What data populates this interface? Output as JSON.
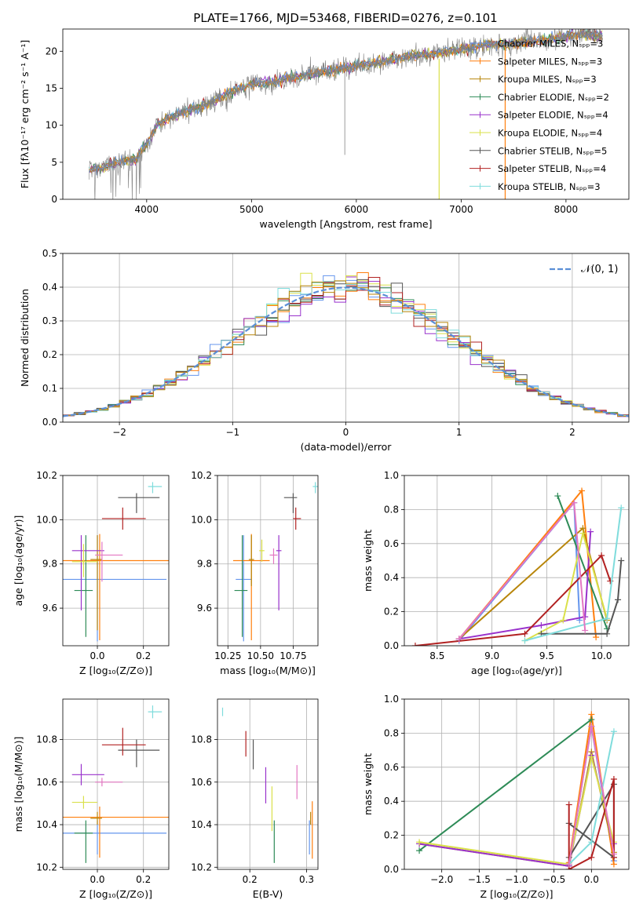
{
  "page_title": "PLATE=1766, MJD=53468, FIBERID=0276, z=0.101",
  "colors": {
    "chabrier_miles": "#6495ED",
    "salpeter_miles": "#FF7F0E",
    "kroupa_miles": "#B8860B",
    "chabrier_elodie": "#2E8B57",
    "salpeter_elodie": "#9932CC",
    "kroupa_elodie": "#DAE04A",
    "chabrier_stelib": "#555555",
    "salpeter_stelib": "#B22222",
    "kroupa_stelib": "#7FDCDC",
    "pink": "#E377C2",
    "normal": "#5B8FD6"
  },
  "chart_data": [
    {
      "id": "spectrum",
      "type": "line",
      "xlabel": "wavelength [Angstrom, rest frame]",
      "ylabel": "Flux [fλ10⁻¹⁷ erg cm⁻² s⁻¹ A⁻¹]",
      "xlim": [
        3200,
        8600
      ],
      "ylim": [
        0,
        23
      ],
      "xticks": [
        "4000",
        "5000",
        "6000",
        "7000",
        "8000"
      ],
      "yticks": [
        "0",
        "5",
        "10",
        "15",
        "20"
      ],
      "legend": [
        "Chabrier MILES, Nₛₚₚ=3",
        "Salpeter MILES, Nₛₚₚ=3",
        "Kroupa MILES, Nₛₚₚ=3",
        "Chabrier ELODIE, Nₛₚₚ=2",
        "Salpeter ELODIE, Nₛₚₚ=4",
        "Kroupa ELODIE, Nₛₚₚ=4",
        "Chabrier STELIB, Nₛₚₚ=5",
        "Salpeter STELIB, Nₛₚₚ=4",
        "Kroupa STELIB, Nₛₚₚ=3"
      ],
      "legend_position": "right",
      "spectrum_x": [
        3450,
        3600,
        3700,
        3800,
        3900,
        4000,
        4100,
        4200,
        4400,
        4600,
        4800,
        5000,
        5200,
        5400,
        5600,
        5800,
        6000,
        6200,
        6400,
        6600,
        6800,
        7000,
        7200,
        7400,
        7600,
        7800,
        8000,
        8200,
        8350
      ],
      "spectrum_y": [
        4,
        4.3,
        5,
        5.2,
        5.5,
        7.5,
        10,
        11,
        12,
        13,
        14.5,
        15.5,
        15.8,
        16.5,
        17,
        17.5,
        18,
        18.5,
        19,
        19.5,
        19.8,
        20.2,
        20.8,
        21,
        21.2,
        21.5,
        22,
        22.3,
        22
      ],
      "grid": false
    },
    {
      "id": "residuals",
      "type": "histogram",
      "xlabel": "(data-model)/error",
      "ylabel": "Normed distribution",
      "xlim": [
        -2.5,
        2.5
      ],
      "ylim": [
        0,
        0.5
      ],
      "xticks": [
        "−2",
        "−1",
        "0",
        "1",
        "2"
      ],
      "yticks": [
        "0.0",
        "0.1",
        "0.2",
        "0.3",
        "0.4",
        "0.5"
      ],
      "legend": [
        "𝒩(0, 1)"
      ],
      "legend_position": "top-right",
      "bin_width": 0.1,
      "grid": true
    },
    {
      "id": "age_vs_Z",
      "type": "errorbar",
      "xlabel": "Z [log₁₀(Z/Z⊙)]",
      "ylabel": "age  [log₁₀(age/yr)]",
      "xlim": [
        -0.15,
        0.31
      ],
      "ylim": [
        9.43,
        10.2
      ],
      "xticks": [
        "0.0",
        "0.2"
      ],
      "yticks": [
        "9.6",
        "9.8",
        "10.0",
        "10.2"
      ],
      "grid": true,
      "points": [
        {
          "color": "chabrier_miles",
          "x": 0.0,
          "xerr": [
            0.3,
            0.3
          ],
          "y": 9.73,
          "yerr": [
            0.28,
            0.2
          ]
        },
        {
          "color": "salpeter_miles",
          "x": 0.01,
          "xerr": [
            0.3,
            0.3
          ],
          "y": 9.815,
          "yerr": [
            0.36,
            0.12
          ]
        },
        {
          "color": "kroupa_miles",
          "x": 0.0,
          "xerr": [
            0.03,
            0.02
          ],
          "y": 9.82,
          "yerr": [
            0.32,
            0.11
          ]
        },
        {
          "color": "chabrier_elodie",
          "x": -0.05,
          "xerr": [
            0.05,
            0.03
          ],
          "y": 9.68,
          "yerr": [
            0.21,
            0.25
          ]
        },
        {
          "color": "salpeter_elodie",
          "x": -0.07,
          "xerr": [
            0.04,
            0.1
          ],
          "y": 9.86,
          "yerr": [
            0.27,
            0.07
          ]
        },
        {
          "color": "kroupa_elodie",
          "x": -0.06,
          "xerr": [
            0.05,
            0.06
          ],
          "y": 9.81,
          "yerr": [
            0.07,
            0.08
          ]
        },
        {
          "color": "chabrier_stelib",
          "x": 0.17,
          "xerr": [
            0.08,
            0.1
          ],
          "y": 10.1,
          "yerr": [
            0.07,
            0.02
          ]
        },
        {
          "color": "salpeter_stelib",
          "x": 0.11,
          "xerr": [
            0.09,
            0.1
          ],
          "y": 10.005,
          "yerr": [
            0.05,
            0.05
          ]
        },
        {
          "color": "kroupa_stelib",
          "x": 0.24,
          "xerr": [
            0.02,
            0.04
          ],
          "y": 10.15,
          "yerr": [
            0.03,
            0.02
          ]
        },
        {
          "color": "pink",
          "x": 0.02,
          "xerr": [
            0.03,
            0.09
          ],
          "y": 9.84,
          "yerr": [
            0.12,
            0.06
          ]
        }
      ]
    },
    {
      "id": "age_vs_mass",
      "type": "errorbar",
      "xlabel": "mass [log₁₀(M/M⊙)]",
      "ylabel": "",
      "xlim": [
        10.17,
        10.94
      ],
      "ylim": [
        9.43,
        10.2
      ],
      "xticks": [
        "10.25",
        "10.50",
        "10.75"
      ],
      "yticks": [
        "9.6",
        "9.8",
        "10.0",
        "10.2"
      ],
      "grid": true,
      "points": [
        {
          "color": "chabrier_miles",
          "x": 10.37,
          "xerr": [
            0.06,
            0.06
          ],
          "y": 9.73,
          "yerr": [
            0.28,
            0.2
          ]
        },
        {
          "color": "salpeter_miles",
          "x": 10.43,
          "xerr": [
            0.14,
            0.14
          ],
          "y": 9.815,
          "yerr": [
            0.36,
            0.12
          ]
        },
        {
          "color": "kroupa_miles",
          "x": 10.43,
          "xerr": [
            0.02,
            0.02
          ],
          "y": 9.82,
          "yerr": [
            0.12,
            0.11
          ]
        },
        {
          "color": "chabrier_elodie",
          "x": 10.36,
          "xerr": [
            0.06,
            0.04
          ],
          "y": 9.68,
          "yerr": [
            0.21,
            0.25
          ]
        },
        {
          "color": "salpeter_elodie",
          "x": 10.64,
          "xerr": [
            0.02,
            0.02
          ],
          "y": 9.86,
          "yerr": [
            0.27,
            0.07
          ]
        },
        {
          "color": "kroupa_elodie",
          "x": 10.51,
          "xerr": [
            0.02,
            0.02
          ],
          "y": 9.86,
          "yerr": [
            0.05,
            0.05
          ]
        },
        {
          "color": "chabrier_stelib",
          "x": 10.75,
          "xerr": [
            0.07,
            0.03
          ],
          "y": 10.1,
          "yerr": [
            0.07,
            0.02
          ]
        },
        {
          "color": "salpeter_stelib",
          "x": 10.77,
          "xerr": [
            0.02,
            0.04
          ],
          "y": 10.005,
          "yerr": [
            0.05,
            0.05
          ]
        },
        {
          "color": "kroupa_stelib",
          "x": 10.92,
          "xerr": [
            0.02,
            0.02
          ],
          "y": 10.15,
          "yerr": [
            0.03,
            0.02
          ]
        },
        {
          "color": "pink",
          "x": 10.6,
          "xerr": [
            0.03,
            0.03
          ],
          "y": 9.84,
          "yerr": [
            0.04,
            0.03
          ]
        }
      ]
    },
    {
      "id": "mass_vs_Z",
      "type": "errorbar",
      "xlabel": "Z [log₁₀(Z/Z⊙)]",
      "ylabel": "mass [log₁₀(M/M⊙)]",
      "xlim": [
        -0.15,
        0.31
      ],
      "ylim": [
        10.19,
        10.99
      ],
      "xticks": [
        "0.0",
        "0.2"
      ],
      "yticks": [
        "10.2",
        "10.4",
        "10.6",
        "10.8"
      ],
      "grid": true,
      "points": [
        {
          "color": "chabrier_miles",
          "x": 0.0,
          "xerr": [
            0.3,
            0.3
          ],
          "y": 10.36,
          "yerr": [
            0.1,
            0.06
          ]
        },
        {
          "color": "salpeter_miles",
          "x": 0.01,
          "xerr": [
            0.3,
            0.3
          ],
          "y": 10.435,
          "yerr": [
            0.19,
            0.05
          ]
        },
        {
          "color": "kroupa_miles",
          "x": 0.0,
          "xerr": [
            0.03,
            0.02
          ],
          "y": 10.43,
          "yerr": [
            0.03,
            0.03
          ]
        },
        {
          "color": "chabrier_elodie",
          "x": -0.05,
          "xerr": [
            0.05,
            0.03
          ],
          "y": 10.36,
          "yerr": [
            0.14,
            0.06
          ]
        },
        {
          "color": "salpeter_elodie",
          "x": -0.07,
          "xerr": [
            0.04,
            0.1
          ],
          "y": 10.635,
          "yerr": [
            0.05,
            0.05
          ]
        },
        {
          "color": "kroupa_elodie",
          "x": -0.06,
          "xerr": [
            0.05,
            0.06
          ],
          "y": 10.505,
          "yerr": [
            0.03,
            0.03
          ]
        },
        {
          "color": "chabrier_stelib",
          "x": 0.17,
          "xerr": [
            0.08,
            0.1
          ],
          "y": 10.75,
          "yerr": [
            0.08,
            0.05
          ]
        },
        {
          "color": "salpeter_stelib",
          "x": 0.11,
          "xerr": [
            0.09,
            0.1
          ],
          "y": 10.775,
          "yerr": [
            0.05,
            0.08
          ]
        },
        {
          "color": "kroupa_stelib",
          "x": 0.24,
          "xerr": [
            0.02,
            0.04
          ],
          "y": 10.93,
          "yerr": [
            0.03,
            0.03
          ]
        },
        {
          "color": "pink",
          "x": 0.02,
          "xerr": [
            0.03,
            0.09
          ],
          "y": 10.6,
          "yerr": [
            0.02,
            0.02
          ]
        }
      ]
    },
    {
      "id": "EBV",
      "type": "errorbar",
      "xlabel": "E(B-V)",
      "ylabel": "",
      "xlim": [
        0.143,
        0.32
      ],
      "ylim": [
        10.19,
        10.99
      ],
      "xticks": [
        "0.2",
        "0.3"
      ],
      "yticks": [
        "10.2",
        "10.4",
        "10.6",
        "10.8"
      ],
      "grid": true,
      "points": [
        {
          "color": "chabrier_miles",
          "x": 0.305,
          "yerr": [
            0.1,
            0.06
          ],
          "y": 10.36
        },
        {
          "color": "salpeter_miles",
          "x": 0.31,
          "yerr": [
            0.19,
            0.08
          ],
          "y": 10.43
        },
        {
          "color": "kroupa_miles",
          "x": 0.307,
          "yerr": [
            0.03,
            0.03
          ],
          "y": 10.43
        },
        {
          "color": "chabrier_elodie",
          "x": 0.243,
          "yerr": [
            0.14,
            0.06
          ],
          "y": 10.36
        },
        {
          "color": "salpeter_elodie",
          "x": 0.228,
          "yerr": [
            0.1,
            0.07
          ],
          "y": 10.6
        },
        {
          "color": "kroupa_elodie",
          "x": 0.239,
          "yerr": [
            0.13,
            0.08
          ],
          "y": 10.5
        },
        {
          "color": "chabrier_stelib",
          "x": 0.206,
          "yerr": [
            0.08,
            0.06
          ],
          "y": 10.74
        },
        {
          "color": "salpeter_stelib",
          "x": 0.193,
          "yerr": [
            0.06,
            0.06
          ],
          "y": 10.78
        },
        {
          "color": "kroupa_stelib",
          "x": 0.152,
          "yerr": [
            0.02,
            0.02
          ],
          "y": 10.93
        },
        {
          "color": "pink",
          "x": 0.283,
          "yerr": [
            0.08,
            0.08
          ],
          "y": 10.6
        }
      ]
    },
    {
      "id": "weight_vs_age",
      "type": "line",
      "xlabel": "age  [log₁₀(age/yr)]",
      "ylabel": "mass weight",
      "xlim": [
        8.2,
        10.25
      ],
      "ylim": [
        0,
        1
      ],
      "xticks": [
        "8.5",
        "9.0",
        "9.5",
        "10.0"
      ],
      "yticks": [
        "0.0",
        "0.2",
        "0.4",
        "0.6",
        "0.8",
        "1.0"
      ],
      "grid": true,
      "series": [
        {
          "color": "chabrier_miles",
          "x": [
            8.7,
            9.75,
            9.8
          ],
          "y": [
            0.03,
            0.84,
            0.15
          ]
        },
        {
          "color": "salpeter_miles",
          "x": [
            8.7,
            9.82,
            9.95
          ],
          "y": [
            0.04,
            0.91,
            0.05
          ]
        },
        {
          "color": "kroupa_miles",
          "x": [
            8.7,
            9.83,
            10.05
          ],
          "y": [
            0.04,
            0.69,
            0.15
          ]
        },
        {
          "color": "chabrier_elodie",
          "x": [
            9.6,
            10.05
          ],
          "y": [
            0.88,
            0.1
          ]
        },
        {
          "color": "salpeter_elodie",
          "x": [
            8.7,
            9.45,
            9.85,
            9.9
          ],
          "y": [
            0.04,
            0.12,
            0.17,
            0.67
          ]
        },
        {
          "color": "kroupa_elodie",
          "x": [
            9.3,
            9.65,
            9.83,
            10.05
          ],
          "y": [
            0.03,
            0.15,
            0.66,
            0.16
          ]
        },
        {
          "color": "chabrier_stelib",
          "x": [
            9.45,
            10.05,
            10.15,
            10.18
          ],
          "y": [
            0.07,
            0.07,
            0.27,
            0.5
          ]
        },
        {
          "color": "salpeter_stelib",
          "x": [
            8.3,
            9.3,
            10.0,
            10.08
          ],
          "y": [
            0.0,
            0.07,
            0.53,
            0.38
          ]
        },
        {
          "color": "kroupa_stelib",
          "x": [
            9.3,
            10.05,
            10.18
          ],
          "y": [
            0.03,
            0.16,
            0.81
          ]
        },
        {
          "color": "pink",
          "x": [
            8.7,
            9.75,
            9.85
          ],
          "y": [
            0.04,
            0.84,
            0.09
          ]
        }
      ]
    },
    {
      "id": "weight_vs_Z",
      "type": "line",
      "xlabel": "Z [log₁₀(Z/Z⊙)]",
      "ylabel": "mass weight",
      "xlim": [
        -2.5,
        0.5
      ],
      "ylim": [
        0,
        1
      ],
      "xticks": [
        "−2.0",
        "−1.5",
        "−1.0",
        "−0.5",
        "0.0"
      ],
      "yticks": [
        "0.0",
        "0.2",
        "0.4",
        "0.6",
        "0.8",
        "1.0"
      ],
      "grid": true,
      "series": [
        {
          "color": "chabrier_miles",
          "x": [
            -0.3,
            0.0,
            0.3
          ],
          "y": [
            0.03,
            0.84,
            0.05
          ]
        },
        {
          "color": "salpeter_miles",
          "x": [
            -0.3,
            0.0,
            0.3
          ],
          "y": [
            0.04,
            0.91,
            0.03
          ]
        },
        {
          "color": "kroupa_miles",
          "x": [
            -2.3,
            -0.3,
            0.0,
            0.3
          ],
          "y": [
            0.15,
            0.02,
            0.69,
            0.1
          ]
        },
        {
          "color": "chabrier_elodie",
          "x": [
            -2.3,
            0.0
          ],
          "y": [
            0.11,
            0.88
          ]
        },
        {
          "color": "salpeter_elodie",
          "x": [
            -2.3,
            -0.3,
            0.0,
            0.3
          ],
          "y": [
            0.15,
            0.02,
            0.67,
            0.15
          ]
        },
        {
          "color": "kroupa_elodie",
          "x": [
            -2.3,
            -0.3,
            0.0,
            0.3
          ],
          "y": [
            0.16,
            0.03,
            0.66,
            0.16
          ]
        },
        {
          "color": "chabrier_stelib",
          "x": [
            -0.3,
            0.3,
            0.3,
            -0.3
          ],
          "y": [
            0.27,
            0.07,
            0.5,
            0.07
          ]
        },
        {
          "color": "salpeter_stelib",
          "x": [
            -0.3,
            -0.3,
            0.0,
            0.3,
            0.3
          ],
          "y": [
            0.38,
            0.0,
            0.07,
            0.53,
            0.07
          ]
        },
        {
          "color": "kroupa_stelib",
          "x": [
            -0.3,
            0.0,
            0.3
          ],
          "y": [
            0.03,
            0.16,
            0.81
          ]
        },
        {
          "color": "pink",
          "x": [
            -0.3,
            0.0,
            0.3
          ],
          "y": [
            0.03,
            0.84,
            0.09
          ]
        }
      ]
    }
  ]
}
